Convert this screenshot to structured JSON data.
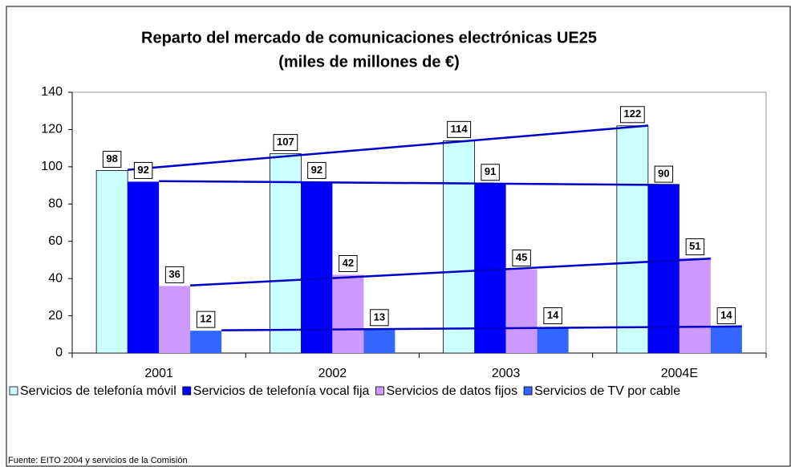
{
  "chart_data": {
    "type": "bar",
    "title": "Reparto del mercado de comunicaciones electrónicas UE25",
    "subtitle": "(miles de millones de €)",
    "categories": [
      "2001",
      "2002",
      "2003",
      "2004E"
    ],
    "series": [
      {
        "name": "Servicios de telefonía móvil",
        "color": "#ccffff",
        "values": [
          98,
          107,
          114,
          122
        ]
      },
      {
        "name": "Servicios de telefonía vocal fija",
        "color": "#0000ff",
        "values": [
          92,
          92,
          91,
          90
        ]
      },
      {
        "name": "Servicios de datos fijos",
        "color": "#cc99ff",
        "values": [
          36,
          42,
          45,
          51
        ]
      },
      {
        "name": "Servicios de TV por cable",
        "color": "#3366ff",
        "values": [
          12,
          13,
          14,
          14
        ]
      }
    ],
    "ylim": [
      0,
      140
    ],
    "yticks": [
      0,
      20,
      40,
      60,
      80,
      100,
      120,
      140
    ],
    "trendlines": true,
    "trendline_color": "#0000cc",
    "source": "Fuente: EITO 2004 y servicios de la Comisión"
  }
}
